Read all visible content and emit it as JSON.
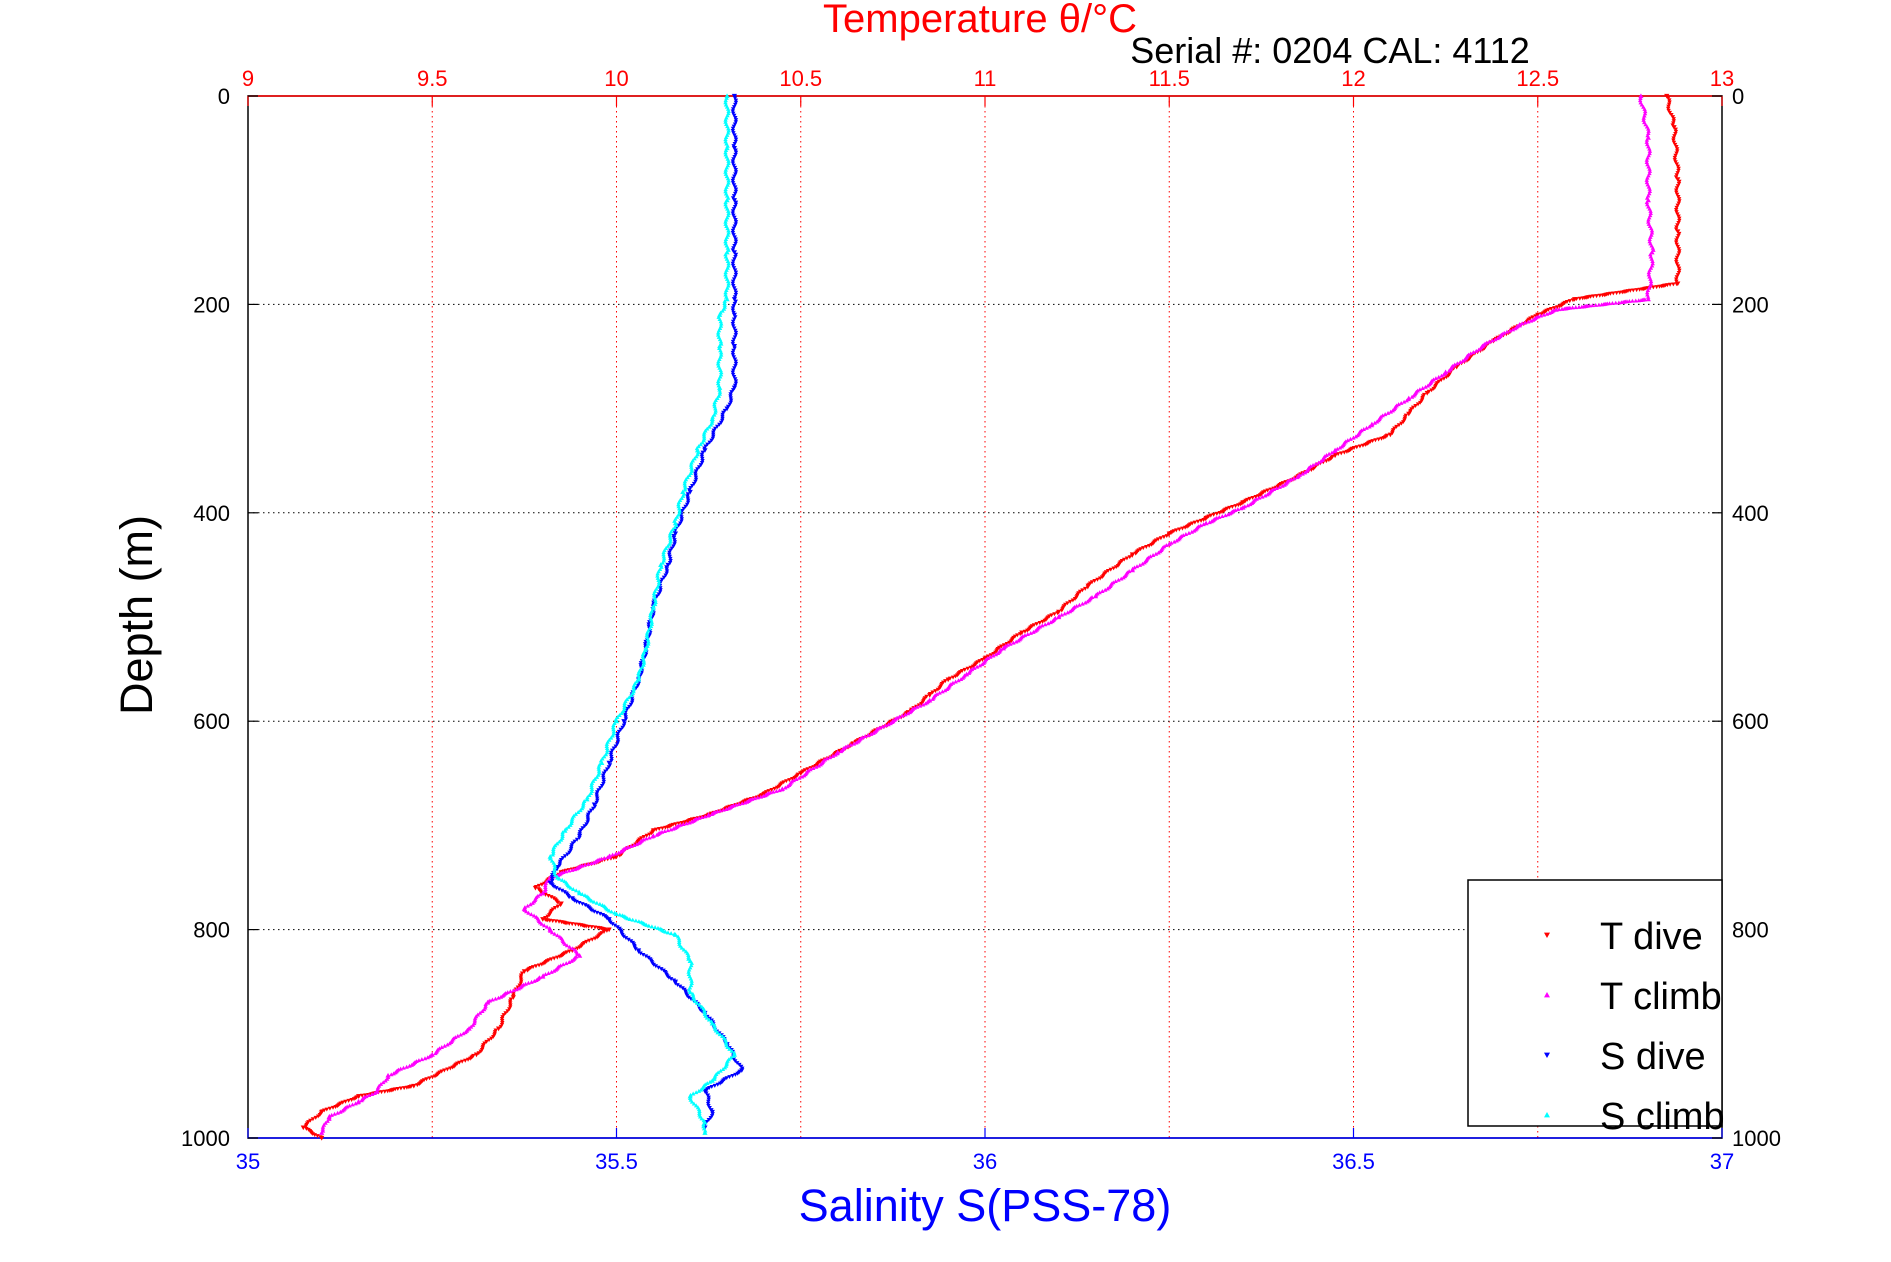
{
  "chart_data": {
    "type": "scatter",
    "title": "Temperature θ/°C",
    "subtitle": "Serial #: 0204  CAL: 4112",
    "xlabel": "Salinity S(PSS-78)",
    "ylabel": "Depth (m)",
    "x_bottom": {
      "lim": [
        35,
        37
      ],
      "ticks": [
        35,
        35.5,
        36,
        36.5,
        37
      ],
      "tick_labels": [
        "35",
        "35.5",
        "36",
        "36.5",
        "37"
      ],
      "color": "#0000ff"
    },
    "x_top": {
      "lim": [
        9,
        13
      ],
      "ticks": [
        9,
        9.5,
        10,
        10.5,
        11,
        11.5,
        12,
        12.5,
        13
      ],
      "tick_labels": [
        "9",
        "9.5",
        "10",
        "10.5",
        "11",
        "11.5",
        "12",
        "12.5",
        "13"
      ],
      "color": "#ff0000"
    },
    "y": {
      "lim": [
        0,
        1000
      ],
      "reversed": true,
      "ticks": [
        0,
        200,
        400,
        600,
        800,
        1000
      ],
      "tick_labels": [
        "0",
        "200",
        "400",
        "600",
        "800",
        "1000"
      ]
    },
    "grid": true,
    "legend_position": "bottom-right",
    "series": [
      {
        "name": "T dive",
        "axis": "top",
        "color": "#ff0000",
        "marker": "triangle-down",
        "points": [
          [
            12.85,
            0
          ],
          [
            12.87,
            30
          ],
          [
            12.88,
            80
          ],
          [
            12.88,
            130
          ],
          [
            12.88,
            180
          ],
          [
            12.6,
            195
          ],
          [
            12.5,
            210
          ],
          [
            12.38,
            235
          ],
          [
            12.28,
            260
          ],
          [
            12.2,
            285
          ],
          [
            12.15,
            305
          ],
          [
            12.1,
            325
          ],
          [
            11.95,
            345
          ],
          [
            11.85,
            365
          ],
          [
            11.7,
            390
          ],
          [
            11.6,
            405
          ],
          [
            11.5,
            420
          ],
          [
            11.4,
            440
          ],
          [
            11.28,
            470
          ],
          [
            11.2,
            495
          ],
          [
            11.1,
            515
          ],
          [
            11.0,
            540
          ],
          [
            10.9,
            560
          ],
          [
            10.85,
            575
          ],
          [
            10.8,
            590
          ],
          [
            10.65,
            620
          ],
          [
            10.5,
            650
          ],
          [
            10.4,
            670
          ],
          [
            10.25,
            690
          ],
          [
            10.1,
            705
          ],
          [
            10.0,
            730
          ],
          [
            9.85,
            745
          ],
          [
            9.78,
            760
          ],
          [
            9.85,
            775
          ],
          [
            9.8,
            790
          ],
          [
            9.98,
            800
          ],
          [
            9.88,
            820
          ],
          [
            9.75,
            840
          ],
          [
            9.72,
            865
          ],
          [
            9.68,
            895
          ],
          [
            9.62,
            920
          ],
          [
            9.45,
            950
          ],
          [
            9.3,
            960
          ],
          [
            9.2,
            975
          ],
          [
            9.15,
            990
          ],
          [
            9.2,
            1000
          ]
        ]
      },
      {
        "name": "T climb",
        "axis": "top",
        "color": "#ff00ff",
        "marker": "triangle-up",
        "points": [
          [
            12.78,
            0
          ],
          [
            12.8,
            40
          ],
          [
            12.8,
            100
          ],
          [
            12.81,
            150
          ],
          [
            12.8,
            195
          ],
          [
            12.55,
            205
          ],
          [
            12.45,
            220
          ],
          [
            12.35,
            240
          ],
          [
            12.25,
            265
          ],
          [
            12.15,
            290
          ],
          [
            12.05,
            315
          ],
          [
            11.95,
            340
          ],
          [
            11.85,
            365
          ],
          [
            11.7,
            395
          ],
          [
            11.6,
            410
          ],
          [
            11.5,
            430
          ],
          [
            11.4,
            455
          ],
          [
            11.3,
            480
          ],
          [
            11.2,
            500
          ],
          [
            11.05,
            530
          ],
          [
            10.95,
            555
          ],
          [
            10.85,
            580
          ],
          [
            10.75,
            600
          ],
          [
            10.6,
            630
          ],
          [
            10.45,
            665
          ],
          [
            10.25,
            690
          ],
          [
            10.1,
            710
          ],
          [
            9.98,
            730
          ],
          [
            9.82,
            750
          ],
          [
            9.8,
            765
          ],
          [
            9.75,
            780
          ],
          [
            9.82,
            800
          ],
          [
            9.9,
            825
          ],
          [
            9.8,
            845
          ],
          [
            9.65,
            870
          ],
          [
            9.6,
            895
          ],
          [
            9.5,
            920
          ],
          [
            9.38,
            940
          ],
          [
            9.35,
            955
          ],
          [
            9.3,
            965
          ],
          [
            9.22,
            980
          ],
          [
            9.2,
            995
          ]
        ]
      },
      {
        "name": "S dive",
        "axis": "bottom",
        "color": "#0000ff",
        "marker": "triangle-down",
        "points": [
          [
            35.66,
            0
          ],
          [
            35.66,
            50
          ],
          [
            35.66,
            100
          ],
          [
            35.66,
            150
          ],
          [
            35.66,
            195
          ],
          [
            35.66,
            210
          ],
          [
            35.66,
            240
          ],
          [
            35.66,
            280
          ],
          [
            35.65,
            300
          ],
          [
            35.62,
            340
          ],
          [
            35.6,
            380
          ],
          [
            35.58,
            420
          ],
          [
            35.57,
            450
          ],
          [
            35.55,
            490
          ],
          [
            35.54,
            530
          ],
          [
            35.53,
            560
          ],
          [
            35.51,
            600
          ],
          [
            35.49,
            640
          ],
          [
            35.47,
            680
          ],
          [
            35.45,
            710
          ],
          [
            35.42,
            740
          ],
          [
            35.41,
            755
          ],
          [
            35.44,
            770
          ],
          [
            35.49,
            790
          ],
          [
            35.53,
            820
          ],
          [
            35.58,
            850
          ],
          [
            35.62,
            880
          ],
          [
            35.65,
            910
          ],
          [
            35.67,
            935
          ],
          [
            35.62,
            955
          ],
          [
            35.63,
            975
          ],
          [
            35.62,
            990
          ]
        ]
      },
      {
        "name": "S climb",
        "axis": "bottom",
        "color": "#00ffff",
        "marker": "triangle-up",
        "points": [
          [
            35.65,
            0
          ],
          [
            35.65,
            50
          ],
          [
            35.65,
            100
          ],
          [
            35.65,
            150
          ],
          [
            35.65,
            195
          ],
          [
            35.64,
            210
          ],
          [
            35.64,
            240
          ],
          [
            35.64,
            280
          ],
          [
            35.63,
            310
          ],
          [
            35.61,
            340
          ],
          [
            35.59,
            380
          ],
          [
            35.58,
            410
          ],
          [
            35.56,
            450
          ],
          [
            35.55,
            490
          ],
          [
            35.54,
            530
          ],
          [
            35.53,
            560
          ],
          [
            35.5,
            600
          ],
          [
            35.48,
            640
          ],
          [
            35.46,
            675
          ],
          [
            35.43,
            705
          ],
          [
            35.41,
            730
          ],
          [
            35.42,
            750
          ],
          [
            35.45,
            765
          ],
          [
            35.5,
            785
          ],
          [
            35.58,
            805
          ],
          [
            35.6,
            830
          ],
          [
            35.6,
            860
          ],
          [
            35.63,
            890
          ],
          [
            35.66,
            920
          ],
          [
            35.63,
            945
          ],
          [
            35.6,
            960
          ],
          [
            35.62,
            985
          ],
          [
            35.62,
            995
          ]
        ]
      }
    ]
  }
}
